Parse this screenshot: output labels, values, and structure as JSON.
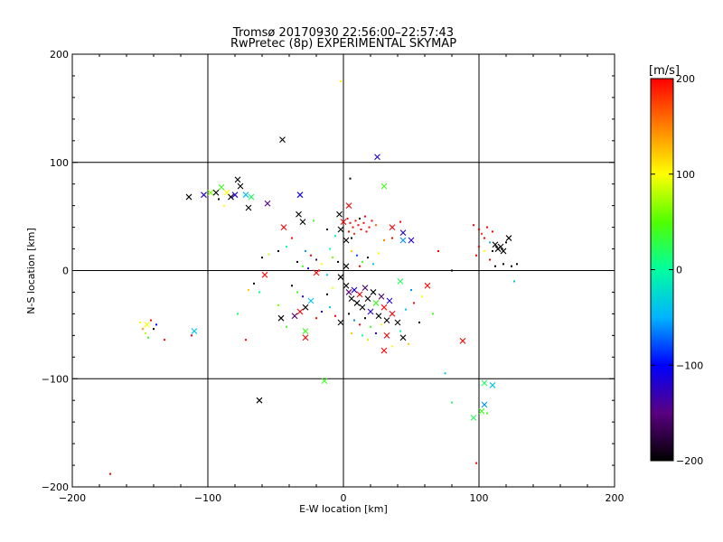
{
  "chart_data": {
    "type": "scatter",
    "title": "Tromsø 20170930 22:56:00–22:57:43",
    "subtitle": "RwPretec (8p) EXPERIMENTAL SKYMAP",
    "xlabel": "E-W location [km]",
    "ylabel": "N-S location [km]",
    "xlim": [
      -200,
      200
    ],
    "ylim": [
      -200,
      200
    ],
    "x_ticks": [
      -200,
      -100,
      0,
      100,
      200
    ],
    "y_ticks": [
      -200,
      -100,
      0,
      100,
      200
    ],
    "grid": true,
    "colorbar": {
      "label": "[m/s]",
      "range": [
        -200,
        200
      ],
      "ticks": [
        -200,
        -100,
        0,
        100,
        200
      ],
      "colormap": "black-purple-blue-cyan-green-yellow-orange-red"
    },
    "points": [
      {
        "x": -2,
        "y": 175,
        "v": 100,
        "m": "dot"
      },
      {
        "x": -45,
        "y": 121,
        "v": -200,
        "m": "x"
      },
      {
        "x": 25,
        "y": 105,
        "v": -120,
        "m": "x"
      },
      {
        "x": -114,
        "y": 68,
        "v": -200,
        "m": "x"
      },
      {
        "x": -103,
        "y": 70,
        "v": -120,
        "m": "x"
      },
      {
        "x": -98,
        "y": 72,
        "v": 60,
        "m": "x"
      },
      {
        "x": -94,
        "y": 72,
        "v": -200,
        "m": "x"
      },
      {
        "x": -90,
        "y": 77,
        "v": 40,
        "m": "x"
      },
      {
        "x": -86,
        "y": 72,
        "v": 100,
        "m": "x"
      },
      {
        "x": -83,
        "y": 68,
        "v": -200,
        "m": "x"
      },
      {
        "x": -80,
        "y": 70,
        "v": -120,
        "m": "x"
      },
      {
        "x": -78,
        "y": 84,
        "v": -200,
        "m": "x"
      },
      {
        "x": -76,
        "y": 78,
        "v": -200,
        "m": "x"
      },
      {
        "x": -72,
        "y": 70,
        "v": -40,
        "m": "x"
      },
      {
        "x": -68,
        "y": 68,
        "v": 20,
        "m": "x"
      },
      {
        "x": -70,
        "y": 58,
        "v": -200,
        "m": "x"
      },
      {
        "x": -56,
        "y": 62,
        "v": -150,
        "m": "x"
      },
      {
        "x": -92,
        "y": 66,
        "v": -200,
        "m": "dot"
      },
      {
        "x": -88,
        "y": 60,
        "v": 100,
        "m": "dot"
      },
      {
        "x": -32,
        "y": 70,
        "v": -110,
        "m": "x"
      },
      {
        "x": -44,
        "y": 40,
        "v": 200,
        "m": "x"
      },
      {
        "x": -30,
        "y": 45,
        "v": -200,
        "m": "x"
      },
      {
        "x": -33,
        "y": 52,
        "v": -200,
        "m": "x"
      },
      {
        "x": -22,
        "y": 46,
        "v": 40,
        "m": "dot"
      },
      {
        "x": -12,
        "y": 38,
        "v": -180,
        "m": "dot"
      },
      {
        "x": 5,
        "y": 85,
        "v": -200,
        "m": "dot"
      },
      {
        "x": 30,
        "y": 78,
        "v": 40,
        "m": "x"
      },
      {
        "x": 4,
        "y": 60,
        "v": 200,
        "m": "x"
      },
      {
        "x": -3,
        "y": 52,
        "v": -200,
        "m": "x"
      },
      {
        "x": 0,
        "y": 45,
        "v": 200,
        "m": "x"
      },
      {
        "x": 3,
        "y": 48,
        "v": 200,
        "m": "dot"
      },
      {
        "x": 5,
        "y": 44,
        "v": 200,
        "m": "dot"
      },
      {
        "x": 7,
        "y": 40,
        "v": 200,
        "m": "dot"
      },
      {
        "x": 9,
        "y": 46,
        "v": 200,
        "m": "dot"
      },
      {
        "x": 11,
        "y": 42,
        "v": 200,
        "m": "dot"
      },
      {
        "x": 13,
        "y": 38,
        "v": 200,
        "m": "dot"
      },
      {
        "x": 15,
        "y": 44,
        "v": 200,
        "m": "dot"
      },
      {
        "x": 17,
        "y": 36,
        "v": 200,
        "m": "dot"
      },
      {
        "x": 19,
        "y": 40,
        "v": 200,
        "m": "dot"
      },
      {
        "x": 4,
        "y": 36,
        "v": 200,
        "m": "dot"
      },
      {
        "x": 8,
        "y": 34,
        "v": 180,
        "m": "dot"
      },
      {
        "x": 12,
        "y": 48,
        "v": -200,
        "m": "dot"
      },
      {
        "x": 16,
        "y": 50,
        "v": 200,
        "m": "dot"
      },
      {
        "x": 21,
        "y": 46,
        "v": 200,
        "m": "dot"
      },
      {
        "x": 24,
        "y": 42,
        "v": 160,
        "m": "dot"
      },
      {
        "x": 2,
        "y": 28,
        "v": -200,
        "m": "x"
      },
      {
        "x": 6,
        "y": 30,
        "v": -200,
        "m": "dot"
      },
      {
        "x": -2,
        "y": 38,
        "v": -200,
        "m": "x"
      },
      {
        "x": -6,
        "y": 32,
        "v": 0,
        "m": "dot"
      },
      {
        "x": 36,
        "y": 40,
        "v": 200,
        "m": "x"
      },
      {
        "x": 44,
        "y": 35,
        "v": -120,
        "m": "x"
      },
      {
        "x": 44,
        "y": 28,
        "v": -60,
        "m": "x"
      },
      {
        "x": 50,
        "y": 28,
        "v": -120,
        "m": "x"
      },
      {
        "x": 42,
        "y": 45,
        "v": 200,
        "m": "dot"
      },
      {
        "x": 36,
        "y": 30,
        "v": 200,
        "m": "dot"
      },
      {
        "x": 30,
        "y": 28,
        "v": 150,
        "m": "dot"
      },
      {
        "x": 70,
        "y": 18,
        "v": 200,
        "m": "dot"
      },
      {
        "x": 80,
        "y": 0,
        "v": -200,
        "m": "dot"
      },
      {
        "x": -38,
        "y": 30,
        "v": 200,
        "m": "dot"
      },
      {
        "x": -42,
        "y": 22,
        "v": 0,
        "m": "dot"
      },
      {
        "x": -48,
        "y": 18,
        "v": -200,
        "m": "dot"
      },
      {
        "x": -55,
        "y": 15,
        "v": 80,
        "m": "dot"
      },
      {
        "x": -60,
        "y": 12,
        "v": -200,
        "m": "dot"
      },
      {
        "x": -28,
        "y": 18,
        "v": -60,
        "m": "dot"
      },
      {
        "x": -24,
        "y": 14,
        "v": 200,
        "m": "dot"
      },
      {
        "x": -20,
        "y": 10,
        "v": -160,
        "m": "dot"
      },
      {
        "x": -16,
        "y": 6,
        "v": 100,
        "m": "dot"
      },
      {
        "x": -34,
        "y": 8,
        "v": -200,
        "m": "dot"
      },
      {
        "x": -30,
        "y": 4,
        "v": 40,
        "m": "dot"
      },
      {
        "x": -26,
        "y": 2,
        "v": -120,
        "m": "dot"
      },
      {
        "x": -18,
        "y": 0,
        "v": 200,
        "m": "dot"
      },
      {
        "x": -12,
        "y": -4,
        "v": -40,
        "m": "dot"
      },
      {
        "x": -8,
        "y": 12,
        "v": 60,
        "m": "dot"
      },
      {
        "x": -4,
        "y": 8,
        "v": -200,
        "m": "dot"
      },
      {
        "x": -10,
        "y": 20,
        "v": 0,
        "m": "dot"
      },
      {
        "x": 6,
        "y": 18,
        "v": 120,
        "m": "dot"
      },
      {
        "x": 10,
        "y": 14,
        "v": -80,
        "m": "dot"
      },
      {
        "x": 14,
        "y": 8,
        "v": 40,
        "m": "dot"
      },
      {
        "x": 18,
        "y": 12,
        "v": -200,
        "m": "dot"
      },
      {
        "x": 22,
        "y": 6,
        "v": -40,
        "m": "dot"
      },
      {
        "x": 26,
        "y": 16,
        "v": 100,
        "m": "dot"
      },
      {
        "x": 12,
        "y": 4,
        "v": 200,
        "m": "dot"
      },
      {
        "x": 2,
        "y": 4,
        "v": -200,
        "m": "x"
      },
      {
        "x": -2,
        "y": -6,
        "v": -200,
        "m": "x"
      },
      {
        "x": -20,
        "y": -2,
        "v": 200,
        "m": "x"
      },
      {
        "x": -58,
        "y": -4,
        "v": 200,
        "m": "x"
      },
      {
        "x": -66,
        "y": -12,
        "v": -200,
        "m": "dot"
      },
      {
        "x": -62,
        "y": -20,
        "v": 0,
        "m": "dot"
      },
      {
        "x": -70,
        "y": -18,
        "v": 120,
        "m": "dot"
      },
      {
        "x": -38,
        "y": -14,
        "v": -200,
        "m": "dot"
      },
      {
        "x": -34,
        "y": -20,
        "v": 40,
        "m": "dot"
      },
      {
        "x": -30,
        "y": -24,
        "v": -120,
        "m": "dot"
      },
      {
        "x": -24,
        "y": -28,
        "v": -40,
        "m": "x"
      },
      {
        "x": -28,
        "y": -34,
        "v": -200,
        "m": "x"
      },
      {
        "x": -32,
        "y": -38,
        "v": 200,
        "m": "x"
      },
      {
        "x": -36,
        "y": -42,
        "v": -160,
        "m": "x"
      },
      {
        "x": -48,
        "y": -32,
        "v": 60,
        "m": "dot"
      },
      {
        "x": -46,
        "y": -44,
        "v": -200,
        "m": "x"
      },
      {
        "x": -42,
        "y": -52,
        "v": 40,
        "m": "dot"
      },
      {
        "x": -20,
        "y": -44,
        "v": 200,
        "m": "dot"
      },
      {
        "x": -16,
        "y": -38,
        "v": -120,
        "m": "dot"
      },
      {
        "x": -10,
        "y": -34,
        "v": -40,
        "m": "dot"
      },
      {
        "x": -6,
        "y": -42,
        "v": 200,
        "m": "dot"
      },
      {
        "x": -2,
        "y": -48,
        "v": -200,
        "m": "x"
      },
      {
        "x": -28,
        "y": -56,
        "v": 40,
        "m": "x"
      },
      {
        "x": -28,
        "y": -62,
        "v": 200,
        "m": "x"
      },
      {
        "x": -12,
        "y": -22,
        "v": -200,
        "m": "dot"
      },
      {
        "x": -8,
        "y": -16,
        "v": 100,
        "m": "dot"
      },
      {
        "x": 2,
        "y": -14,
        "v": -200,
        "m": "x"
      },
      {
        "x": 4,
        "y": -20,
        "v": -150,
        "m": "x"
      },
      {
        "x": 6,
        "y": -26,
        "v": -200,
        "m": "x"
      },
      {
        "x": 8,
        "y": -18,
        "v": -120,
        "m": "x"
      },
      {
        "x": 10,
        "y": -30,
        "v": -200,
        "m": "x"
      },
      {
        "x": 12,
        "y": -22,
        "v": 200,
        "m": "x"
      },
      {
        "x": 14,
        "y": -34,
        "v": -200,
        "m": "x"
      },
      {
        "x": 16,
        "y": -16,
        "v": -160,
        "m": "x"
      },
      {
        "x": 18,
        "y": -26,
        "v": -200,
        "m": "x"
      },
      {
        "x": 20,
        "y": -38,
        "v": -120,
        "m": "x"
      },
      {
        "x": 22,
        "y": -20,
        "v": -200,
        "m": "x"
      },
      {
        "x": 24,
        "y": -30,
        "v": 40,
        "m": "x"
      },
      {
        "x": 26,
        "y": -42,
        "v": -200,
        "m": "x"
      },
      {
        "x": 28,
        "y": -24,
        "v": -160,
        "m": "x"
      },
      {
        "x": 30,
        "y": -34,
        "v": 200,
        "m": "x"
      },
      {
        "x": 32,
        "y": -46,
        "v": -200,
        "m": "x"
      },
      {
        "x": 34,
        "y": -28,
        "v": -120,
        "m": "x"
      },
      {
        "x": 4,
        "y": -40,
        "v": -200,
        "m": "dot"
      },
      {
        "x": 8,
        "y": -46,
        "v": -60,
        "m": "dot"
      },
      {
        "x": 12,
        "y": -50,
        "v": 200,
        "m": "dot"
      },
      {
        "x": 16,
        "y": -44,
        "v": -200,
        "m": "dot"
      },
      {
        "x": 20,
        "y": -52,
        "v": 40,
        "m": "dot"
      },
      {
        "x": 24,
        "y": -58,
        "v": -120,
        "m": "dot"
      },
      {
        "x": 28,
        "y": -50,
        "v": 100,
        "m": "dot"
      },
      {
        "x": 14,
        "y": -60,
        "v": 0,
        "m": "dot"
      },
      {
        "x": 18,
        "y": -64,
        "v": 80,
        "m": "dot"
      },
      {
        "x": 6,
        "y": -58,
        "v": 120,
        "m": "dot"
      },
      {
        "x": 36,
        "y": -40,
        "v": 200,
        "m": "x"
      },
      {
        "x": 40,
        "y": -48,
        "v": -200,
        "m": "x"
      },
      {
        "x": 42,
        "y": -56,
        "v": 0,
        "m": "dot"
      },
      {
        "x": 44,
        "y": -62,
        "v": -200,
        "m": "x"
      },
      {
        "x": 46,
        "y": -36,
        "v": -40,
        "m": "dot"
      },
      {
        "x": 32,
        "y": -60,
        "v": 200,
        "m": "x"
      },
      {
        "x": 30,
        "y": -74,
        "v": 200,
        "m": "x"
      },
      {
        "x": 36,
        "y": -70,
        "v": 100,
        "m": "dot"
      },
      {
        "x": 48,
        "y": -68,
        "v": 120,
        "m": "dot"
      },
      {
        "x": 42,
        "y": -10,
        "v": 20,
        "m": "x"
      },
      {
        "x": 50,
        "y": -18,
        "v": -60,
        "m": "dot"
      },
      {
        "x": 52,
        "y": -30,
        "v": 200,
        "m": "dot"
      },
      {
        "x": 58,
        "y": -24,
        "v": 100,
        "m": "dot"
      },
      {
        "x": 62,
        "y": -14,
        "v": 200,
        "m": "x"
      },
      {
        "x": 66,
        "y": -40,
        "v": 40,
        "m": "dot"
      },
      {
        "x": 56,
        "y": -48,
        "v": -200,
        "m": "dot"
      },
      {
        "x": 88,
        "y": -65,
        "v": 200,
        "m": "x"
      },
      {
        "x": 75,
        "y": -95,
        "v": -40,
        "m": "dot"
      },
      {
        "x": 80,
        "y": -122,
        "v": 20,
        "m": "dot"
      },
      {
        "x": 104,
        "y": 30,
        "v": 200,
        "m": "dot"
      },
      {
        "x": 100,
        "y": 38,
        "v": 200,
        "m": "dot"
      },
      {
        "x": 106,
        "y": 40,
        "v": 200,
        "m": "dot"
      },
      {
        "x": 110,
        "y": 36,
        "v": 200,
        "m": "dot"
      },
      {
        "x": 102,
        "y": 34,
        "v": 180,
        "m": "dot"
      },
      {
        "x": 108,
        "y": 26,
        "v": -40,
        "m": "dot"
      },
      {
        "x": 112,
        "y": 24,
        "v": -200,
        "m": "x"
      },
      {
        "x": 114,
        "y": 20,
        "v": -200,
        "m": "x"
      },
      {
        "x": 116,
        "y": 22,
        "v": -200,
        "m": "x"
      },
      {
        "x": 118,
        "y": 18,
        "v": -200,
        "m": "x"
      },
      {
        "x": 110,
        "y": 18,
        "v": -200,
        "m": "dot"
      },
      {
        "x": 122,
        "y": 30,
        "v": -200,
        "m": "x"
      },
      {
        "x": 120,
        "y": 26,
        "v": -200,
        "m": "dot"
      },
      {
        "x": 104,
        "y": 18,
        "v": 100,
        "m": "dot"
      },
      {
        "x": 100,
        "y": 22,
        "v": 200,
        "m": "dot"
      },
      {
        "x": 98,
        "y": 14,
        "v": 200,
        "m": "dot"
      },
      {
        "x": 96,
        "y": 42,
        "v": 200,
        "m": "dot"
      },
      {
        "x": 112,
        "y": 4,
        "v": -200,
        "m": "dot"
      },
      {
        "x": 118,
        "y": 6,
        "v": -200,
        "m": "dot"
      },
      {
        "x": 124,
        "y": 4,
        "v": -200,
        "m": "dot"
      },
      {
        "x": 128,
        "y": 6,
        "v": -200,
        "m": "dot"
      },
      {
        "x": 108,
        "y": 10,
        "v": 200,
        "m": "dot"
      },
      {
        "x": 126,
        "y": -10,
        "v": -40,
        "m": "dot"
      },
      {
        "x": 104,
        "y": -104,
        "v": 20,
        "m": "x"
      },
      {
        "x": 110,
        "y": -106,
        "v": -40,
        "m": "x"
      },
      {
        "x": 104,
        "y": -124,
        "v": -60,
        "m": "x"
      },
      {
        "x": 102,
        "y": -130,
        "v": 40,
        "m": "x"
      },
      {
        "x": 106,
        "y": -132,
        "v": 40,
        "m": "dot"
      },
      {
        "x": 96,
        "y": -136,
        "v": 20,
        "m": "x"
      },
      {
        "x": 98,
        "y": -178,
        "v": 200,
        "m": "dot"
      },
      {
        "x": -145,
        "y": -50,
        "v": 100,
        "m": "x"
      },
      {
        "x": -148,
        "y": -54,
        "v": 140,
        "m": "dot"
      },
      {
        "x": -142,
        "y": -46,
        "v": 200,
        "m": "dot"
      },
      {
        "x": -140,
        "y": -54,
        "v": -200,
        "m": "dot"
      },
      {
        "x": -146,
        "y": -58,
        "v": 80,
        "m": "dot"
      },
      {
        "x": -144,
        "y": -62,
        "v": 40,
        "m": "dot"
      },
      {
        "x": -138,
        "y": -50,
        "v": -100,
        "m": "dot"
      },
      {
        "x": -150,
        "y": -48,
        "v": 100,
        "m": "dot"
      },
      {
        "x": -132,
        "y": -64,
        "v": 200,
        "m": "dot"
      },
      {
        "x": -110,
        "y": -56,
        "v": -40,
        "m": "x"
      },
      {
        "x": -112,
        "y": -60,
        "v": 200,
        "m": "dot"
      },
      {
        "x": -78,
        "y": -40,
        "v": 20,
        "m": "dot"
      },
      {
        "x": -72,
        "y": -64,
        "v": 200,
        "m": "dot"
      },
      {
        "x": -62,
        "y": -120,
        "v": -200,
        "m": "x"
      },
      {
        "x": -14,
        "y": -102,
        "v": 40,
        "m": "x"
      },
      {
        "x": -172,
        "y": -188,
        "v": 200,
        "m": "dot"
      }
    ]
  }
}
